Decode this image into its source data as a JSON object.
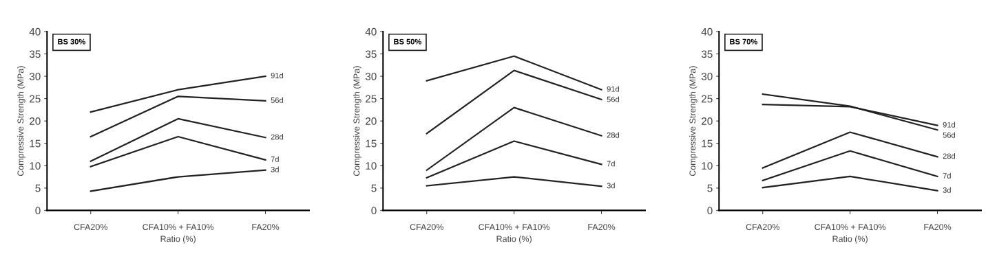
{
  "chart_data": [
    {
      "type": "line",
      "title": "BS 30%",
      "xlabel": "Ratio (%)",
      "ylabel": "Compressive Strength (MPa)",
      "categories": [
        "CFA20%",
        "CFA10% + FA10%",
        "FA20%"
      ],
      "ylim": [
        0,
        40
      ],
      "yticks": [
        0,
        5,
        10,
        15,
        20,
        25,
        30,
        35,
        40
      ],
      "grid": false,
      "legend": false,
      "marker": "none",
      "line_style": "solid",
      "series": [
        {
          "name": "91d",
          "color": "#222222",
          "values": [
            22,
            27,
            30
          ]
        },
        {
          "name": "56d",
          "color": "#222222",
          "values": [
            16.5,
            25.5,
            24.5
          ]
        },
        {
          "name": "28d",
          "color": "#222222",
          "values": [
            11,
            20.5,
            16.3
          ]
        },
        {
          "name": "7d",
          "color": "#222222",
          "values": [
            9.8,
            16.5,
            11.3
          ]
        },
        {
          "name": "3d",
          "color": "#222222",
          "values": [
            4.3,
            7.5,
            9
          ]
        }
      ]
    },
    {
      "type": "line",
      "title": "BS 50%",
      "xlabel": "Ratio (%)",
      "ylabel": "Compressive Strength (MPa)",
      "categories": [
        "CFA20%",
        "CFA10% + FA10%",
        "FA20%"
      ],
      "ylim": [
        0,
        40
      ],
      "yticks": [
        0,
        5,
        10,
        15,
        20,
        25,
        30,
        35,
        40
      ],
      "grid": false,
      "legend": false,
      "marker": "none",
      "line_style": "solid",
      "series": [
        {
          "name": "91d",
          "color": "#222222",
          "values": [
            29,
            34.5,
            27
          ]
        },
        {
          "name": "56d",
          "color": "#222222",
          "values": [
            17.2,
            31.3,
            24.8
          ]
        },
        {
          "name": "28d",
          "color": "#222222",
          "values": [
            9,
            23,
            16.7
          ]
        },
        {
          "name": "7d",
          "color": "#222222",
          "values": [
            7.3,
            15.5,
            10.3
          ]
        },
        {
          "name": "3d",
          "color": "#222222",
          "values": [
            5.5,
            7.5,
            5.4
          ]
        }
      ]
    },
    {
      "type": "line",
      "title": "BS 70%",
      "xlabel": "Ratio (%)",
      "ylabel": "Compressive Strength (MPa)",
      "categories": [
        "CFA20%",
        "CFA10% + FA10%",
        "FA20%"
      ],
      "ylim": [
        0,
        40
      ],
      "yticks": [
        0,
        5,
        10,
        15,
        20,
        25,
        30,
        35,
        40
      ],
      "grid": false,
      "legend": false,
      "marker": "none",
      "line_style": "solid",
      "series": [
        {
          "name": "91d",
          "color": "#222222",
          "values": [
            23.7,
            23.2,
            19
          ]
        },
        {
          "name": "56d",
          "color": "#222222",
          "values": [
            26,
            23.3,
            18
          ]
        },
        {
          "name": "28d",
          "color": "#222222",
          "values": [
            9.5,
            17.5,
            12
          ]
        },
        {
          "name": "7d",
          "color": "#222222",
          "values": [
            6.7,
            13.3,
            7.6
          ]
        },
        {
          "name": "3d",
          "color": "#222222",
          "values": [
            5.1,
            7.6,
            4.4
          ]
        }
      ]
    }
  ]
}
